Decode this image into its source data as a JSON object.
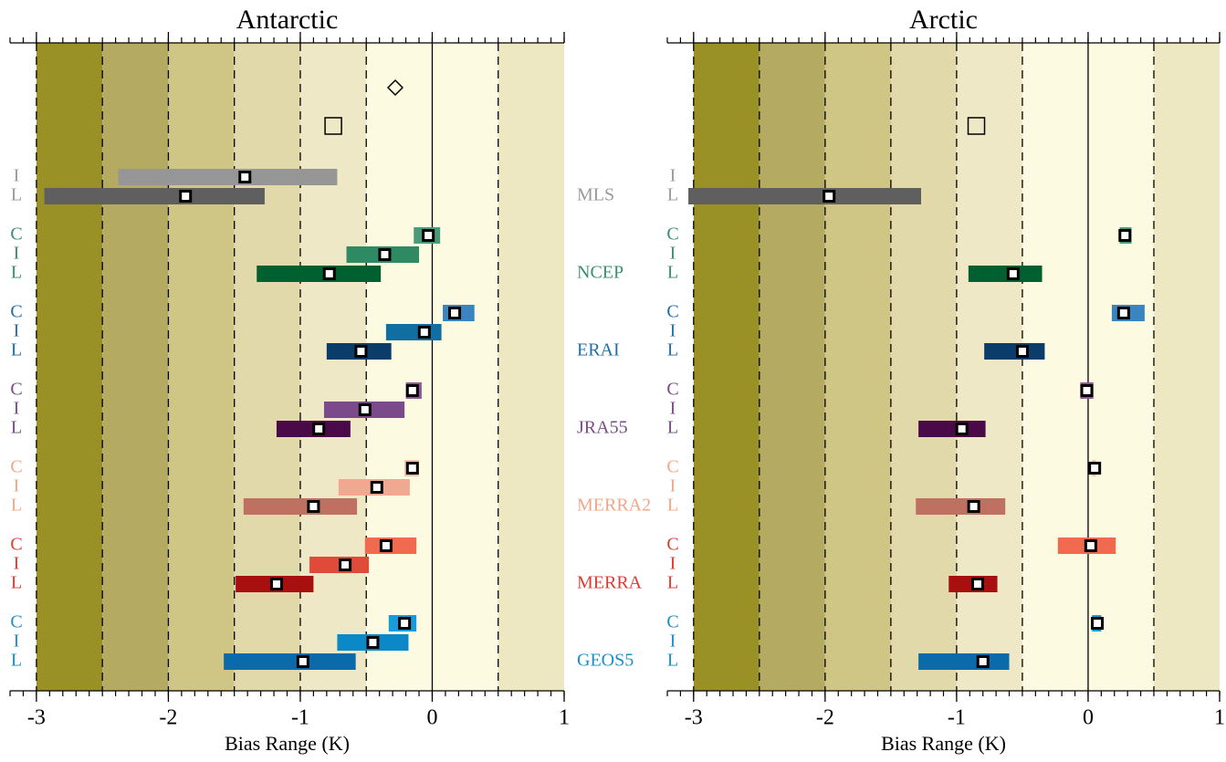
{
  "datasets": [
    {
      "name": "MLS",
      "color": "#9a9a9a"
    },
    {
      "name": "NCEP",
      "color": "#3a8f6f"
    },
    {
      "name": "ERAI",
      "color": "#2070a8"
    },
    {
      "name": "JRA55",
      "color": "#7a4a8a"
    },
    {
      "name": "MERRA2",
      "color": "#f0a888"
    },
    {
      "name": "MERRA",
      "color": "#e03a30"
    },
    {
      "name": "GEOS5",
      "color": "#1a90c8"
    }
  ],
  "chart_data": [
    {
      "type": "range",
      "title": "Antarctic",
      "xlabel": "Bias Range (K)",
      "xlim": [
        -3.2,
        1
      ],
      "xticks": [
        -3,
        -2,
        -1,
        0,
        1
      ],
      "minor_tick_step": 0.1,
      "grid": [
        -3,
        -2.5,
        -2,
        -1.5,
        -1,
        -0.5,
        0.5
      ],
      "zero_line": 0,
      "bands": [
        {
          "range": [
            -3,
            -2.5
          ],
          "color": "#9a9126"
        },
        {
          "range": [
            -2.5,
            -2
          ],
          "color": "#b5aa62"
        },
        {
          "range": [
            -2,
            -1.5
          ],
          "color": "#cfc585"
        },
        {
          "range": [
            -1.5,
            -1
          ],
          "color": "#e2d9aa"
        },
        {
          "range": [
            -1,
            -0.5
          ],
          "color": "#efe8c6"
        },
        {
          "range": [
            -0.5,
            0.5
          ],
          "color": "#fdfae2"
        },
        {
          "range": [
            0.5,
            1
          ],
          "color": "#eee8c2"
        }
      ],
      "symbols": [
        {
          "shape": "diamond",
          "x": -0.28
        },
        {
          "shape": "square",
          "x": -0.75
        }
      ],
      "series": [
        {
          "rows": [
            {
              "label": "I",
              "color": "#969696",
              "range": [
                -2.38,
                -0.72
              ],
              "value": -1.42
            },
            {
              "label": "L",
              "color": "#5f5f5f",
              "range": [
                -2.94,
                -1.27
              ],
              "value": -1.87
            }
          ]
        },
        {
          "rows": [
            {
              "label": "C",
              "color": "#4a9a7a",
              "range": [
                -0.14,
                0.06
              ],
              "value": -0.03
            },
            {
              "label": "I",
              "color": "#2e8a62",
              "range": [
                -0.65,
                -0.1
              ],
              "value": -0.36
            },
            {
              "label": "L",
              "color": "#006030",
              "range": [
                -1.33,
                -0.39
              ],
              "value": -0.78
            }
          ]
        },
        {
          "rows": [
            {
              "label": "C",
              "color": "#3a85c0",
              "range": [
                0.08,
                0.32
              ],
              "value": 0.17
            },
            {
              "label": "I",
              "color": "#106fa0",
              "range": [
                -0.35,
                0.07
              ],
              "value": -0.06
            },
            {
              "label": "L",
              "color": "#0a3d6a",
              "range": [
                -0.8,
                -0.31
              ],
              "value": -0.54
            }
          ]
        },
        {
          "rows": [
            {
              "label": "C",
              "color": "#8a5a9a",
              "range": [
                -0.2,
                -0.08
              ],
              "value": -0.15
            },
            {
              "label": "I",
              "color": "#7a4a8a",
              "range": [
                -0.82,
                -0.21
              ],
              "value": -0.51
            },
            {
              "label": "L",
              "color": "#4a0a4a",
              "range": [
                -1.18,
                -0.62
              ],
              "value": -0.86
            }
          ]
        },
        {
          "rows": [
            {
              "label": "C",
              "color": "#f5c0a8",
              "range": [
                -0.21,
                -0.1
              ],
              "value": -0.15
            },
            {
              "label": "I",
              "color": "#f0a890",
              "range": [
                -0.71,
                -0.17
              ],
              "value": -0.42
            },
            {
              "label": "L",
              "color": "#c07060",
              "range": [
                -1.43,
                -0.57
              ],
              "value": -0.9
            }
          ]
        },
        {
          "rows": [
            {
              "label": "C",
              "color": "#f06a50",
              "range": [
                -0.51,
                -0.12
              ],
              "value": -0.35
            },
            {
              "label": "I",
              "color": "#e04a38",
              "range": [
                -0.93,
                -0.48
              ],
              "value": -0.66
            },
            {
              "label": "L",
              "color": "#a81010",
              "range": [
                -1.49,
                -0.9
              ],
              "value": -1.18
            }
          ]
        },
        {
          "rows": [
            {
              "label": "C",
              "color": "#1a9ad8",
              "range": [
                -0.33,
                -0.12
              ],
              "value": -0.21
            },
            {
              "label": "I",
              "color": "#0a88c8",
              "range": [
                -0.72,
                -0.18
              ],
              "value": -0.45
            },
            {
              "label": "L",
              "color": "#0a6aaa",
              "range": [
                -1.58,
                -0.58
              ],
              "value": -0.98
            }
          ]
        }
      ]
    },
    {
      "type": "range",
      "title": "Arctic",
      "xlabel": "Bias Range (K)",
      "xlim": [
        -3.2,
        1
      ],
      "xticks": [
        -3,
        -2,
        -1,
        0,
        1
      ],
      "minor_tick_step": 0.1,
      "grid": [
        -3,
        -2.5,
        -2,
        -1.5,
        -1,
        -0.5,
        0.5
      ],
      "zero_line": 0,
      "bands": [
        {
          "range": [
            -3,
            -2.5
          ],
          "color": "#9a9126"
        },
        {
          "range": [
            -2.5,
            -2
          ],
          "color": "#b5aa62"
        },
        {
          "range": [
            -2,
            -1.5
          ],
          "color": "#cfc585"
        },
        {
          "range": [
            -1.5,
            -1
          ],
          "color": "#e2d9aa"
        },
        {
          "range": [
            -1,
            -0.5
          ],
          "color": "#efe8c6"
        },
        {
          "range": [
            -0.5,
            0.5
          ],
          "color": "#fdfae2"
        },
        {
          "range": [
            0.5,
            1
          ],
          "color": "#eee8c2"
        }
      ],
      "symbols": [
        {
          "shape": "square",
          "x": -0.85
        }
      ],
      "series": [
        {
          "rows": [
            {
              "label": "I",
              "color": "#969696",
              "range": null,
              "value": null
            },
            {
              "label": "L",
              "color": "#5f5f5f",
              "range": [
                -3.04,
                -1.27
              ],
              "value": -1.97
            }
          ]
        },
        {
          "rows": [
            {
              "label": "C",
              "color": "#4a9a7a",
              "range": [
                0.24,
                0.33
              ],
              "value": 0.28
            },
            {
              "label": "I",
              "color": "#2e8a62",
              "range": null,
              "value": null
            },
            {
              "label": "L",
              "color": "#006030",
              "range": [
                -0.91,
                -0.35
              ],
              "value": -0.57
            }
          ]
        },
        {
          "rows": [
            {
              "label": "C",
              "color": "#3a85c0",
              "range": [
                0.18,
                0.43
              ],
              "value": 0.27
            },
            {
              "label": "I",
              "color": "#106fa0",
              "range": null,
              "value": null
            },
            {
              "label": "L",
              "color": "#0a3d6a",
              "range": [
                -0.79,
                -0.33
              ],
              "value": -0.5
            }
          ]
        },
        {
          "rows": [
            {
              "label": "C",
              "color": "#8a5a9a",
              "range": [
                -0.06,
                0.04
              ],
              "value": -0.01
            },
            {
              "label": "I",
              "color": "#7a4a8a",
              "range": null,
              "value": null
            },
            {
              "label": "L",
              "color": "#4a0a4a",
              "range": [
                -1.29,
                -0.78
              ],
              "value": -0.96
            }
          ]
        },
        {
          "rows": [
            {
              "label": "C",
              "color": "#f5c0a8",
              "range": [
                0.03,
                0.06
              ],
              "value": 0.05
            },
            {
              "label": "I",
              "color": "#f0a890",
              "range": null,
              "value": null
            },
            {
              "label": "L",
              "color": "#c07060",
              "range": [
                -1.31,
                -0.63
              ],
              "value": -0.87
            }
          ]
        },
        {
          "rows": [
            {
              "label": "C",
              "color": "#f06a50",
              "range": [
                -0.23,
                0.21
              ],
              "value": 0.02
            },
            {
              "label": "I",
              "color": "#e04a38",
              "range": null,
              "value": null
            },
            {
              "label": "L",
              "color": "#a81010",
              "range": [
                -1.06,
                -0.69
              ],
              "value": -0.84
            }
          ]
        },
        {
          "rows": [
            {
              "label": "C",
              "color": "#1a9ad8",
              "range": [
                0.03,
                0.1
              ],
              "value": 0.07
            },
            {
              "label": "I",
              "color": "#0a88c8",
              "range": null,
              "value": null
            },
            {
              "label": "L",
              "color": "#0a6aaa",
              "range": [
                -1.29,
                -0.6
              ],
              "value": -0.8
            }
          ]
        }
      ]
    }
  ]
}
